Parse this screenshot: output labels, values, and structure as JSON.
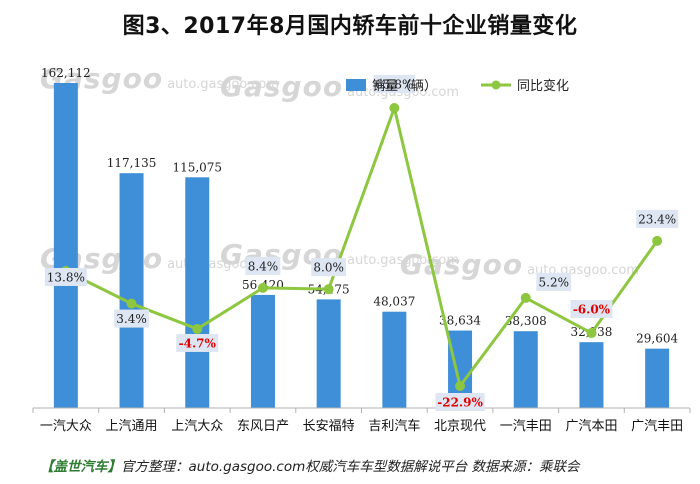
{
  "title": "图3、2017年8月国内轿车前十企业销量变化",
  "footer": {
    "brand": "【盖世汽车】",
    "text": "官方整理：auto.gasgoo.com权威汽车车型数据解说平台 数据来源：乘联会"
  },
  "watermark": {
    "brand": "Gasgoo",
    "cn": "盖世汽车",
    "url": "auto.gasgoo.com"
  },
  "colors": {
    "bar": "#3e8fd8",
    "line": "#8dc63f",
    "negative_label": "#e00000",
    "label_box": "#dde6f2"
  },
  "chart_data": {
    "type": "bar",
    "title": "图3、2017年8月国内轿车前十企业销量变化",
    "categories": [
      "一汽大众",
      "上汽通用",
      "上汽大众",
      "东风日产",
      "长安福特",
      "吉利汽车",
      "北京现代",
      "一汽丰田",
      "广汽本田",
      "广汽丰田"
    ],
    "legend": {
      "position": "top-right",
      "entries": [
        "销量（辆）",
        "同比变化"
      ]
    },
    "series": [
      {
        "name": "销量（辆）",
        "type": "bar",
        "values": [
          162112,
          117135,
          115075,
          56420,
          54175,
          48037,
          38634,
          38308,
          32838,
          29604
        ],
        "labels": [
          "162,112",
          "117,135",
          "115,075",
          "56,420",
          "54,175",
          "48,037",
          "38,634",
          "38,308",
          "32,838",
          "29,604"
        ]
      },
      {
        "name": "同比变化",
        "type": "line",
        "values": [
          13.8,
          3.4,
          -4.7,
          8.4,
          8.0,
          65.8,
          -22.9,
          5.2,
          -6.0,
          23.4
        ],
        "labels": [
          "13.8%",
          "3.4%",
          "-4.7%",
          "8.4%",
          "8.0%",
          "65.8%",
          "-22.9%",
          "5.2%",
          "-6.0%",
          "23.4%"
        ]
      }
    ],
    "grid": false
  }
}
